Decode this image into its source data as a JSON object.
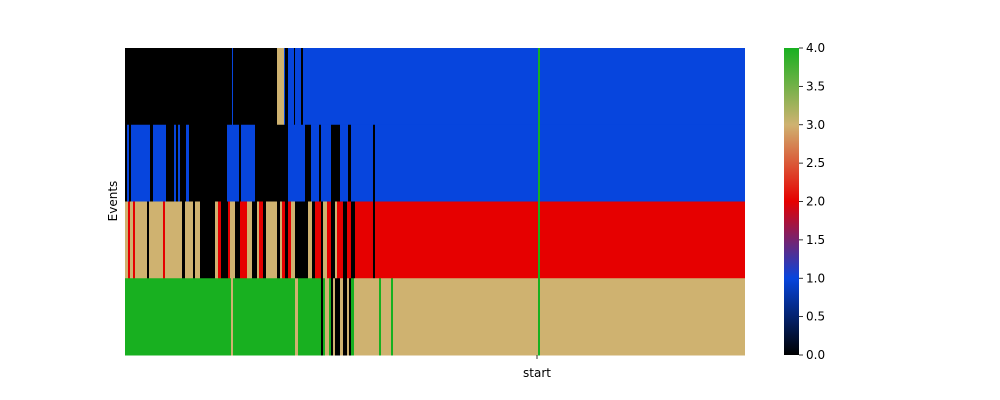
{
  "chart_data": {
    "type": "heatmap",
    "ylabel": "Events",
    "xlabel": "",
    "x_tick_labels": [
      "start"
    ],
    "n_rows": 4,
    "colorbar": {
      "range": [
        0,
        4
      ],
      "ticks": [
        "0.0",
        "0.5",
        "1.0",
        "1.5",
        "2.0",
        "2.5",
        "3.0",
        "3.5",
        "4.0"
      ],
      "colors": [
        "#000000",
        "#0745DD",
        "#E60000",
        "#CFB270",
        "#18B020"
      ]
    },
    "rows": [
      {
        "runs": [
          [
            0,
            107,
            0
          ],
          [
            107,
            108,
            1
          ],
          [
            108,
            152,
            0
          ],
          [
            152,
            159,
            3
          ],
          [
            159,
            160,
            1
          ],
          [
            160,
            163,
            0
          ],
          [
            163,
            169,
            1
          ],
          [
            169,
            170,
            0
          ],
          [
            170,
            176,
            1
          ],
          [
            176,
            178,
            0
          ],
          [
            178,
            197,
            1
          ],
          [
            197,
            413,
            1
          ],
          [
            413,
            415,
            4
          ],
          [
            415,
            620,
            1
          ]
        ]
      },
      {
        "runs": [
          [
            0,
            2,
            0
          ],
          [
            2,
            4,
            1
          ],
          [
            4,
            6,
            0
          ],
          [
            6,
            25,
            1
          ],
          [
            25,
            28,
            0
          ],
          [
            28,
            41,
            1
          ],
          [
            41,
            49,
            0
          ],
          [
            49,
            51,
            1
          ],
          [
            51,
            53,
            0
          ],
          [
            53,
            55,
            1
          ],
          [
            55,
            61,
            0
          ],
          [
            61,
            64,
            1
          ],
          [
            64,
            68,
            0
          ],
          [
            68,
            102,
            0
          ],
          [
            102,
            114,
            1
          ],
          [
            114,
            116,
            0
          ],
          [
            116,
            119,
            1
          ],
          [
            119,
            130,
            1
          ],
          [
            130,
            163,
            0
          ],
          [
            163,
            170,
            1
          ],
          [
            170,
            173,
            1
          ],
          [
            173,
            180,
            1
          ],
          [
            180,
            186,
            0
          ],
          [
            186,
            190,
            1
          ],
          [
            190,
            194,
            1
          ],
          [
            194,
            196,
            0
          ],
          [
            196,
            206,
            1
          ],
          [
            206,
            208,
            0
          ],
          [
            208,
            215,
            0
          ],
          [
            215,
            223,
            1
          ],
          [
            223,
            226,
            0
          ],
          [
            226,
            230,
            1
          ],
          [
            230,
            248,
            1
          ],
          [
            248,
            250,
            0
          ],
          [
            250,
            413,
            1
          ],
          [
            413,
            415,
            4
          ],
          [
            415,
            620,
            1
          ]
        ]
      },
      {
        "runs": [
          [
            0,
            3,
            3
          ],
          [
            3,
            5,
            2
          ],
          [
            5,
            8,
            3
          ],
          [
            8,
            10,
            2
          ],
          [
            10,
            22,
            3
          ],
          [
            22,
            24,
            0
          ],
          [
            24,
            38,
            3
          ],
          [
            38,
            40,
            2
          ],
          [
            40,
            57,
            3
          ],
          [
            57,
            60,
            0
          ],
          [
            60,
            68,
            3
          ],
          [
            68,
            70,
            0
          ],
          [
            70,
            75,
            3
          ],
          [
            75,
            78,
            0
          ],
          [
            78,
            90,
            0
          ],
          [
            90,
            93,
            3
          ],
          [
            93,
            96,
            2
          ],
          [
            96,
            99,
            0
          ],
          [
            99,
            103,
            0
          ],
          [
            103,
            105,
            2
          ],
          [
            105,
            110,
            3
          ],
          [
            110,
            115,
            0
          ],
          [
            115,
            118,
            2
          ],
          [
            118,
            122,
            2
          ],
          [
            122,
            127,
            3
          ],
          [
            127,
            132,
            0
          ],
          [
            132,
            134,
            3
          ],
          [
            134,
            138,
            2
          ],
          [
            138,
            141,
            0
          ],
          [
            141,
            145,
            3
          ],
          [
            145,
            152,
            3
          ],
          [
            152,
            155,
            0
          ],
          [
            155,
            157,
            3
          ],
          [
            157,
            160,
            2
          ],
          [
            160,
            163,
            0
          ],
          [
            163,
            166,
            2
          ],
          [
            166,
            170,
            3
          ],
          [
            170,
            178,
            0
          ],
          [
            178,
            183,
            0
          ],
          [
            183,
            187,
            3
          ],
          [
            187,
            190,
            0
          ],
          [
            190,
            196,
            2
          ],
          [
            196,
            198,
            0
          ],
          [
            198,
            202,
            3
          ],
          [
            202,
            206,
            2
          ],
          [
            206,
            210,
            0
          ],
          [
            210,
            212,
            3
          ],
          [
            212,
            218,
            2
          ],
          [
            218,
            222,
            0
          ],
          [
            222,
            226,
            2
          ],
          [
            226,
            230,
            0
          ],
          [
            230,
            248,
            2
          ],
          [
            248,
            250,
            0
          ],
          [
            250,
            413,
            2
          ],
          [
            413,
            415,
            4
          ],
          [
            415,
            620,
            2
          ]
        ]
      },
      {
        "runs": [
          [
            0,
            106,
            4
          ],
          [
            106,
            108,
            3
          ],
          [
            108,
            170,
            4
          ],
          [
            170,
            173,
            3
          ],
          [
            173,
            196,
            4
          ],
          [
            196,
            198,
            0
          ],
          [
            198,
            200,
            4
          ],
          [
            200,
            204,
            3
          ],
          [
            204,
            206,
            4
          ],
          [
            206,
            208,
            0
          ],
          [
            208,
            210,
            3
          ],
          [
            210,
            215,
            0
          ],
          [
            215,
            218,
            3
          ],
          [
            218,
            222,
            0
          ],
          [
            222,
            224,
            3
          ],
          [
            224,
            226,
            0
          ],
          [
            226,
            229,
            4
          ],
          [
            229,
            254,
            3
          ],
          [
            254,
            256,
            4
          ],
          [
            256,
            266,
            3
          ],
          [
            266,
            268,
            4
          ],
          [
            268,
            413,
            3
          ],
          [
            413,
            415,
            4
          ],
          [
            415,
            620,
            3
          ]
        ]
      }
    ]
  }
}
